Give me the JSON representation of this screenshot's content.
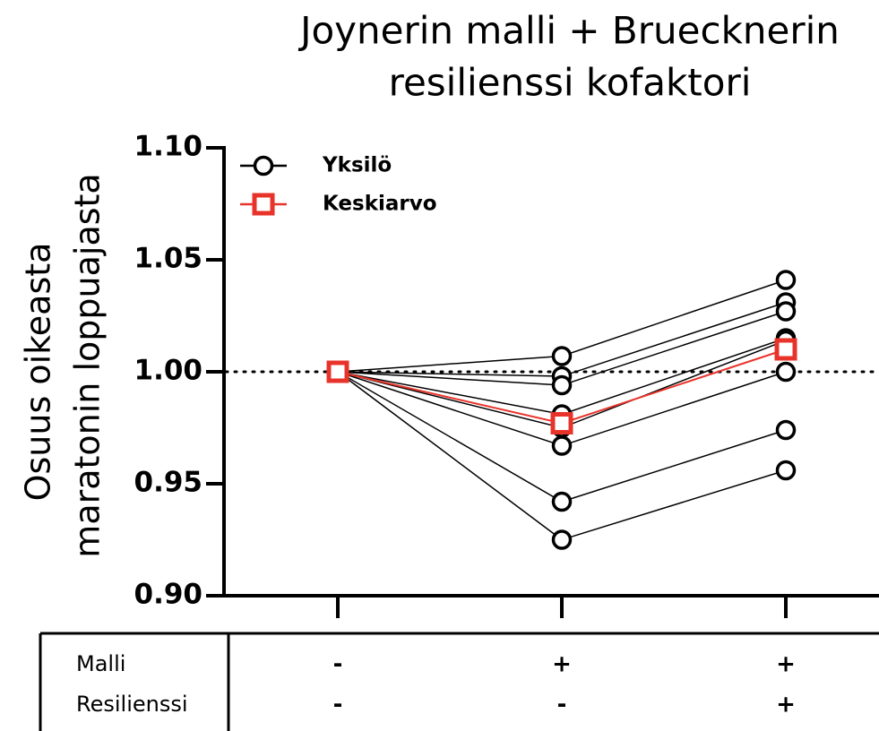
{
  "chart_data": {
    "type": "line",
    "title": [
      "Joynerin malli + Bruecknerin",
      "resilienssi kofaktori"
    ],
    "y_label": [
      "Osuus oikeasta",
      "maratonin loppuajasta"
    ],
    "categories": [
      null,
      null,
      null
    ],
    "series": [
      {
        "name": "Yksilö",
        "color": "#000000",
        "values": [
          [
            1.0,
            1.007,
            1.041
          ],
          [
            1.0,
            0.998,
            1.031
          ],
          [
            1.0,
            0.994,
            1.027
          ],
          [
            1.0,
            0.981,
            1.015
          ],
          [
            1.0,
            0.975,
            1.014
          ],
          [
            1.0,
            0.967,
            1.0
          ],
          [
            1.0,
            0.942,
            0.974
          ],
          [
            1.0,
            0.925,
            0.956
          ]
        ]
      },
      {
        "name": "Keskiarvo",
        "color": "#e8332a",
        "values": [
          1.0,
          0.977,
          1.01
        ]
      }
    ],
    "reference_line": 1.0,
    "ylim": [
      0.9,
      1.1
    ],
    "yticks": [
      {
        "value": 0.9,
        "label": "0.90"
      },
      0.95,
      {
        "value": 1.0,
        "label": "1.00"
      },
      1.05,
      {
        "value": 1.1,
        "label": "1.10"
      }
    ],
    "legend": "upper left",
    "table": [
      {
        "label": "Malli",
        "values": [
          "-",
          "+",
          "+"
        ]
      },
      {
        "label": "Resilienssi",
        "values": [
          "-",
          "-",
          "+"
        ]
      }
    ]
  }
}
